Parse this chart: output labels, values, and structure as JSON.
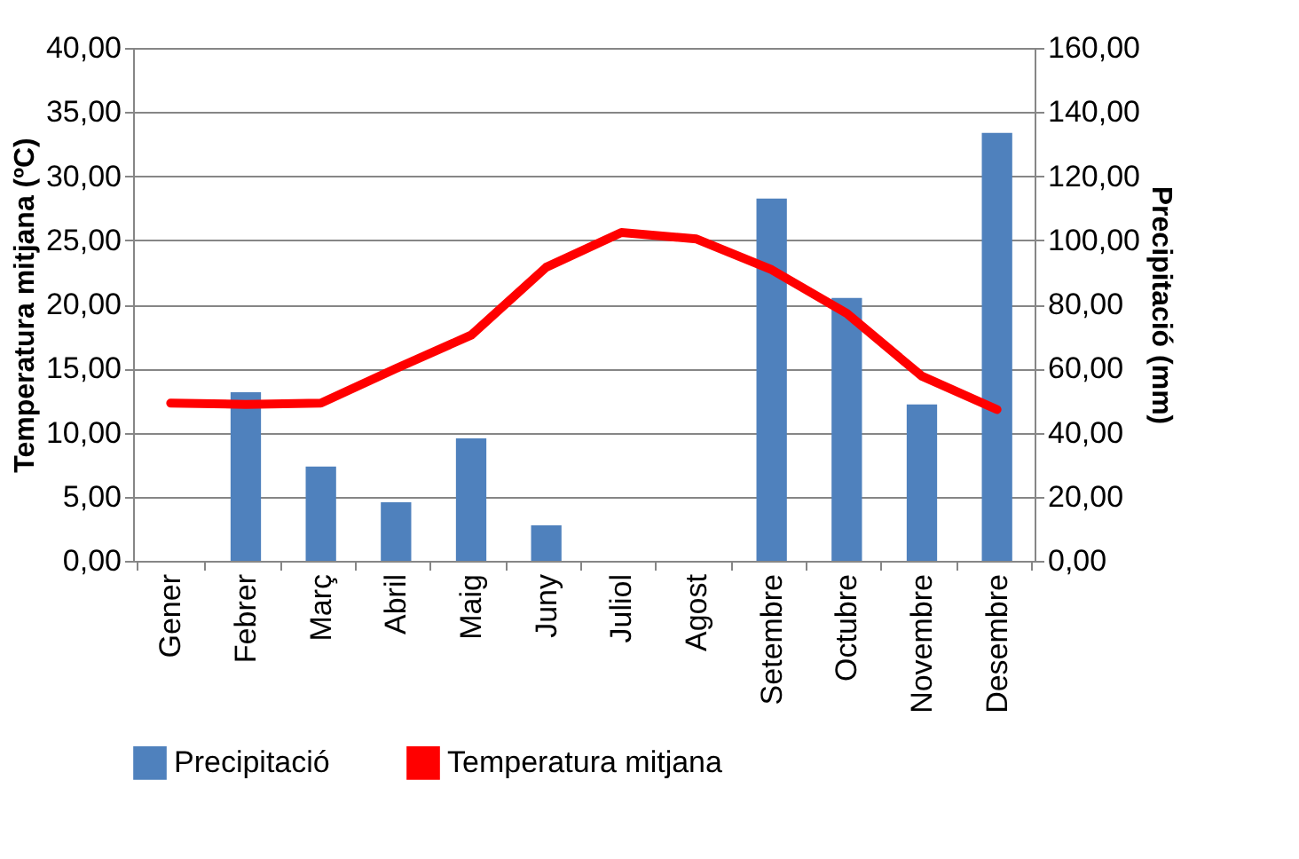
{
  "chart_data": {
    "type": "bar",
    "ylabel": "Temperatura mitjana (ºC)",
    "y2label": "Precipitació (mm)",
    "categories": [
      "Gener",
      "Febrer",
      "Març",
      "Abril",
      "Maig",
      "Juny",
      "Juliol",
      "Agost",
      "Setembre",
      "Octubre",
      "Novembre",
      "Desembre"
    ],
    "series": [
      {
        "name": "Precipitació",
        "axis": "y2",
        "color": "#4f81bd",
        "values": [
          0,
          52.6,
          29.4,
          18.3,
          38.2,
          11.1,
          0,
          0,
          113,
          82,
          48.8,
          133.5
        ]
      },
      {
        "name": "Temperatura mitjana",
        "type": "line",
        "color": "#ff0000",
        "values": [
          12.3,
          12.2,
          12.3,
          15.0,
          17.6,
          22.9,
          25.6,
          25.1,
          22.7,
          19.3,
          14.4,
          11.8
        ]
      }
    ],
    "ylim": [
      0,
      40
    ],
    "yticks": [
      {
        "value": 0,
        "label": "0,00"
      },
      {
        "value": 5,
        "label": "5,00"
      },
      {
        "value": 10,
        "label": "10,00"
      },
      {
        "value": 15,
        "label": "15,00"
      },
      {
        "value": 20,
        "label": "20,00"
      },
      {
        "value": 25,
        "label": "25,00"
      },
      {
        "value": 30,
        "label": "30,00"
      },
      {
        "value": 35,
        "label": "35,00"
      },
      {
        "value": 40,
        "label": "40,00"
      }
    ],
    "y2lim": [
      0,
      160
    ],
    "y2ticks": [
      {
        "value": 0,
        "label": "0,00"
      },
      {
        "value": 20,
        "label": "20,00"
      },
      {
        "value": 40,
        "label": "40,00"
      },
      {
        "value": 60,
        "label": "60,00"
      },
      {
        "value": 80,
        "label": "80,00"
      },
      {
        "value": 100,
        "label": "100,00"
      },
      {
        "value": 120,
        "label": "120,00"
      },
      {
        "value": 140,
        "label": "140,00"
      },
      {
        "value": 160,
        "label": "160,00"
      }
    ],
    "grid": "y",
    "legend": "bottom",
    "marker": "none",
    "line_style": "solid"
  }
}
